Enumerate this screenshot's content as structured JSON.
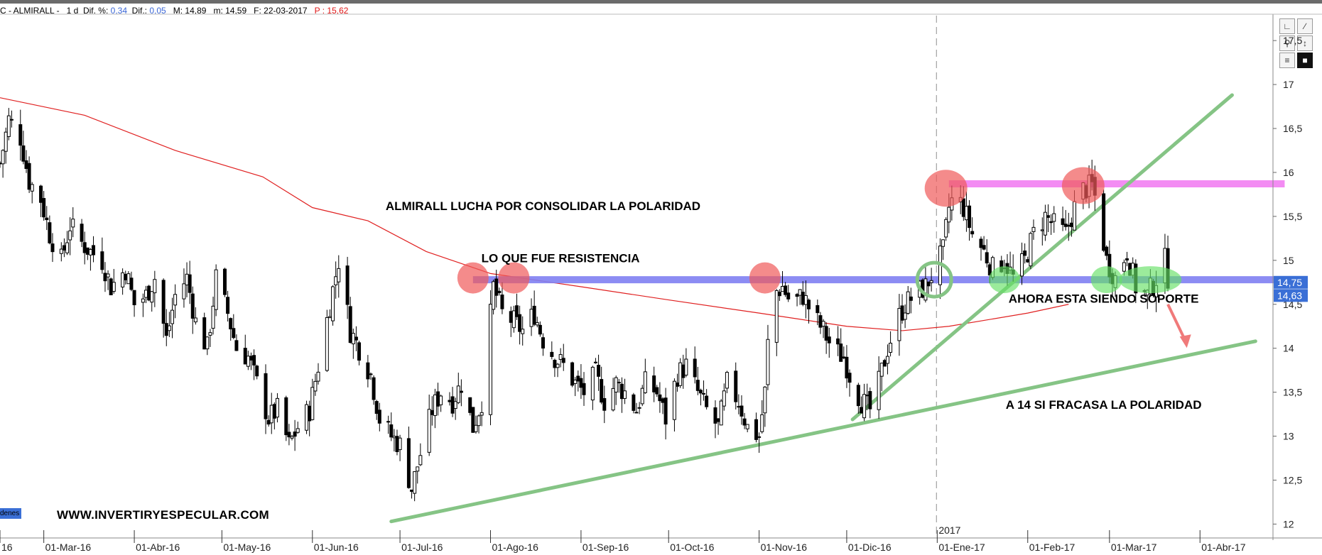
{
  "header": {
    "ticker_prefix": "C - ALMIRALL -",
    "timeframe": "1 d",
    "dif_pct_label": "Dif. %:",
    "dif_pct_value": "0,34",
    "dif_label": "Dif.:",
    "dif_value": "0,05",
    "max_text": "M: 14,89",
    "min_text": "m: 14,59",
    "date_text": "F: 22-03-2017",
    "p_label": "P :",
    "p_value": "15,62"
  },
  "toolbar": {
    "icons": [
      "chart-type-icon",
      "draw-line-icon",
      "zoom-icon",
      "scale-icon",
      "list-icon",
      "color-icon"
    ]
  },
  "watermark": "WWW.INVERTIRYESPECULAR.COM",
  "orders_tab": "denes",
  "year_marker": "2017",
  "colors": {
    "up_candle": "#ffffff",
    "down_candle": "#000000",
    "sma": "#e02020",
    "resistance_band": "#7f7ff2",
    "top_band": "#f27ff2",
    "trendline": "#85c485",
    "circle_red": "#f05a5a",
    "circle_green": "#66e066",
    "price_tag": "#3a6fd6",
    "arrow": "#f07a7a"
  },
  "chart_data": {
    "type": "candlestick",
    "title": "",
    "xlabel": "",
    "ylabel": "",
    "ylim": [
      11.85,
      17.8
    ],
    "xlim": [
      "2016-02-15",
      "2017-04-26"
    ],
    "y_ticks": [
      "12",
      "12,5",
      "13",
      "13,5",
      "14",
      "14,5",
      "15",
      "15,5",
      "16",
      "16,5",
      "17",
      "17,5"
    ],
    "x_ticks": [
      {
        "date": "2016-02-15",
        "label": "16"
      },
      {
        "date": "2016-03-01",
        "label": "01-Mar-16"
      },
      {
        "date": "2016-04-01",
        "label": "01-Abr-16"
      },
      {
        "date": "2016-05-01",
        "label": "01-May-16"
      },
      {
        "date": "2016-06-01",
        "label": "01-Jun-16"
      },
      {
        "date": "2016-07-01",
        "label": "01-Jul-16"
      },
      {
        "date": "2016-08-01",
        "label": "01-Ago-16"
      },
      {
        "date": "2016-09-01",
        "label": "01-Sep-16"
      },
      {
        "date": "2016-10-01",
        "label": "01-Oct-16"
      },
      {
        "date": "2016-11-01",
        "label": "01-Nov-16"
      },
      {
        "date": "2016-12-01",
        "label": "01-Dic-16"
      },
      {
        "date": "2017-01-01",
        "label": "01-Ene-17"
      },
      {
        "date": "2017-02-01",
        "label": "01-Feb-17"
      },
      {
        "date": "2017-03-01",
        "label": "01-Mar-17"
      },
      {
        "date": "2017-04-01",
        "label": "01-Abr-17"
      }
    ],
    "price_tags": [
      {
        "label": "14,75",
        "value": 14.75
      },
      {
        "label": "14,63",
        "value": 14.6
      }
    ],
    "close_path": [
      [
        "2016-02-15",
        16.1
      ],
      [
        "2016-02-18",
        16.6
      ],
      [
        "2016-02-22",
        16.4
      ],
      [
        "2016-02-25",
        15.9
      ],
      [
        "2016-02-29",
        15.7
      ],
      [
        "2016-03-03",
        15.3
      ],
      [
        "2016-03-07",
        15.0
      ],
      [
        "2016-03-10",
        15.4
      ],
      [
        "2016-03-14",
        15.2
      ],
      [
        "2016-03-17",
        15.1
      ],
      [
        "2016-03-21",
        15.0
      ],
      [
        "2016-03-24",
        14.7
      ],
      [
        "2016-03-29",
        14.9
      ],
      [
        "2016-04-01",
        14.5
      ],
      [
        "2016-04-05",
        14.6
      ],
      [
        "2016-04-08",
        14.8
      ],
      [
        "2016-04-12",
        14.1
      ],
      [
        "2016-04-15",
        14.6
      ],
      [
        "2016-04-19",
        14.8
      ],
      [
        "2016-04-22",
        14.3
      ],
      [
        "2016-04-26",
        14.0
      ],
      [
        "2016-04-29",
        14.8
      ],
      [
        "2016-05-03",
        14.4
      ],
      [
        "2016-05-06",
        14.0
      ],
      [
        "2016-05-10",
        13.9
      ],
      [
        "2016-05-13",
        13.6
      ],
      [
        "2016-05-17",
        13.2
      ],
      [
        "2016-05-20",
        13.3
      ],
      [
        "2016-05-24",
        12.9
      ],
      [
        "2016-05-27",
        13.1
      ],
      [
        "2016-05-31",
        13.3
      ],
      [
        "2016-06-03",
        13.8
      ],
      [
        "2016-06-07",
        14.5
      ],
      [
        "2016-06-10",
        15.0
      ],
      [
        "2016-06-14",
        14.2
      ],
      [
        "2016-06-17",
        14.0
      ],
      [
        "2016-06-21",
        13.7
      ],
      [
        "2016-06-24",
        13.2
      ],
      [
        "2016-06-28",
        13.0
      ],
      [
        "2016-07-01",
        12.9
      ],
      [
        "2016-07-05",
        12.4
      ],
      [
        "2016-07-08",
        12.8
      ],
      [
        "2016-07-12",
        13.3
      ],
      [
        "2016-07-15",
        13.5
      ],
      [
        "2016-07-19",
        13.4
      ],
      [
        "2016-07-22",
        13.6
      ],
      [
        "2016-07-26",
        13.1
      ],
      [
        "2016-07-29",
        13.4
      ],
      [
        "2016-08-02",
        14.7
      ],
      [
        "2016-08-05",
        14.4
      ],
      [
        "2016-08-09",
        14.3
      ],
      [
        "2016-08-12",
        14.2
      ],
      [
        "2016-08-16",
        14.4
      ],
      [
        "2016-08-19",
        14.1
      ],
      [
        "2016-08-23",
        13.9
      ],
      [
        "2016-08-26",
        13.8
      ],
      [
        "2016-08-30",
        13.6
      ],
      [
        "2016-09-02",
        13.5
      ],
      [
        "2016-09-06",
        13.7
      ],
      [
        "2016-09-09",
        13.4
      ],
      [
        "2016-09-13",
        13.6
      ],
      [
        "2016-09-16",
        13.5
      ],
      [
        "2016-09-20",
        13.3
      ],
      [
        "2016-09-23",
        13.6
      ],
      [
        "2016-09-27",
        13.5
      ],
      [
        "2016-09-30",
        13.2
      ],
      [
        "2016-10-04",
        13.7
      ],
      [
        "2016-10-07",
        13.8
      ],
      [
        "2016-10-11",
        13.5
      ],
      [
        "2016-10-14",
        13.3
      ],
      [
        "2016-10-18",
        13.1
      ],
      [
        "2016-10-21",
        13.6
      ],
      [
        "2016-10-25",
        13.4
      ],
      [
        "2016-10-28",
        13.1
      ],
      [
        "2016-11-01",
        13.0
      ],
      [
        "2016-11-03",
        13.5
      ],
      [
        "2016-11-05",
        14.6
      ],
      [
        "2016-11-09",
        14.7
      ],
      [
        "2016-11-12",
        14.5
      ],
      [
        "2016-11-16",
        14.6
      ],
      [
        "2016-11-19",
        14.4
      ],
      [
        "2016-11-23",
        14.2
      ],
      [
        "2016-11-26",
        14.0
      ],
      [
        "2016-11-30",
        13.9
      ],
      [
        "2016-12-03",
        13.6
      ],
      [
        "2016-12-06",
        13.4
      ],
      [
        "2016-12-09",
        13.3
      ],
      [
        "2016-12-12",
        13.6
      ],
      [
        "2016-12-15",
        14.0
      ],
      [
        "2016-12-18",
        14.3
      ],
      [
        "2016-12-21",
        14.5
      ],
      [
        "2016-12-24",
        14.6
      ],
      [
        "2016-12-28",
        14.7
      ],
      [
        "2016-12-31",
        14.9
      ],
      [
        "2017-01-03",
        15.1
      ],
      [
        "2017-01-05",
        15.6
      ],
      [
        "2017-01-07",
        15.75
      ],
      [
        "2017-01-10",
        15.6
      ],
      [
        "2017-01-13",
        15.3
      ],
      [
        "2017-01-17",
        15.1
      ],
      [
        "2017-01-20",
        14.9
      ],
      [
        "2017-01-24",
        15.0
      ],
      [
        "2017-01-27",
        14.8
      ],
      [
        "2017-01-31",
        15.0
      ],
      [
        "2017-02-03",
        15.3
      ],
      [
        "2017-02-07",
        15.5
      ],
      [
        "2017-02-10",
        15.4
      ],
      [
        "2017-02-14",
        15.3
      ],
      [
        "2017-02-17",
        15.6
      ],
      [
        "2017-02-20",
        15.8
      ],
      [
        "2017-02-23",
        15.85
      ],
      [
        "2017-02-25",
        15.6
      ],
      [
        "2017-02-28",
        15.0
      ],
      [
        "2017-03-03",
        14.8
      ],
      [
        "2017-03-07",
        15.1
      ],
      [
        "2017-03-10",
        14.7
      ],
      [
        "2017-03-14",
        14.6
      ],
      [
        "2017-03-17",
        14.8
      ],
      [
        "2017-03-20",
        15.0
      ],
      [
        "2017-03-22",
        14.63
      ]
    ],
    "sma_path": [
      [
        "2016-02-15",
        16.85
      ],
      [
        "2016-03-15",
        16.65
      ],
      [
        "2016-04-15",
        16.25
      ],
      [
        "2016-05-15",
        15.95
      ],
      [
        "2016-06-01",
        15.6
      ],
      [
        "2016-06-20",
        15.45
      ],
      [
        "2016-07-10",
        15.1
      ],
      [
        "2016-08-01",
        14.85
      ],
      [
        "2016-09-01",
        14.7
      ],
      [
        "2016-10-01",
        14.55
      ],
      [
        "2016-11-01",
        14.4
      ],
      [
        "2016-12-01",
        14.25
      ],
      [
        "2016-12-20",
        14.2
      ],
      [
        "2017-01-05",
        14.25
      ],
      [
        "2017-02-01",
        14.4
      ],
      [
        "2017-02-15",
        14.5
      ]
    ],
    "levels": [
      {
        "name": "resistance-turned-support",
        "value": 14.78,
        "from": "2016-07-26",
        "to": "2017-04-30"
      },
      {
        "name": "top-resistance",
        "value": 15.87,
        "from": "2017-01-05",
        "to": "2017-04-30"
      }
    ],
    "trendlines": [
      {
        "name": "long-support",
        "from": [
          "2016-06-28",
          12.03
        ],
        "to": [
          "2017-04-20",
          14.08
        ]
      },
      {
        "name": "steep-support",
        "from": [
          "2016-12-03",
          13.19
        ],
        "to": [
          "2017-04-12",
          16.88
        ]
      }
    ],
    "highlights": [
      {
        "color": "red",
        "at": [
          "2016-07-26",
          14.8
        ]
      },
      {
        "color": "red",
        "at": [
          "2016-08-09",
          14.8
        ]
      },
      {
        "color": "red",
        "at": [
          "2016-11-03",
          14.8
        ]
      },
      {
        "color": "red",
        "at": [
          "2017-01-04",
          15.82
        ]
      },
      {
        "color": "red",
        "at": [
          "2017-02-20",
          15.85
        ]
      },
      {
        "color": "green-ring",
        "at": [
          "2016-12-31",
          14.78
        ]
      },
      {
        "color": "green",
        "at": [
          "2017-01-24",
          14.78
        ]
      },
      {
        "color": "green",
        "at": [
          "2017-02-28",
          14.78
        ]
      },
      {
        "color": "green",
        "at": [
          "2017-03-15",
          14.78
        ]
      }
    ],
    "annotations": [
      {
        "name": "annotation-title",
        "text": "ALMIRALL LUCHA POR CONSOLIDAR LA POLARIDAD",
        "at": [
          "2016-08-19",
          15.57
        ]
      },
      {
        "name": "annotation-resistance",
        "text": "LO QUE FUE RESISTENCIA",
        "at": [
          "2016-08-25",
          14.98
        ]
      },
      {
        "name": "annotation-support",
        "text": "AHORA ESTA SIENDO SOPORTE",
        "at": [
          "2017-02-27",
          14.52
        ]
      },
      {
        "name": "annotation-target",
        "text": "A 14 SI FRACASA LA POLARIDAD",
        "at": [
          "2017-02-27",
          13.31
        ]
      }
    ],
    "arrow": {
      "from": [
        "2017-03-21",
        14.5
      ],
      "to": [
        "2017-03-27",
        14.02
      ]
    }
  }
}
